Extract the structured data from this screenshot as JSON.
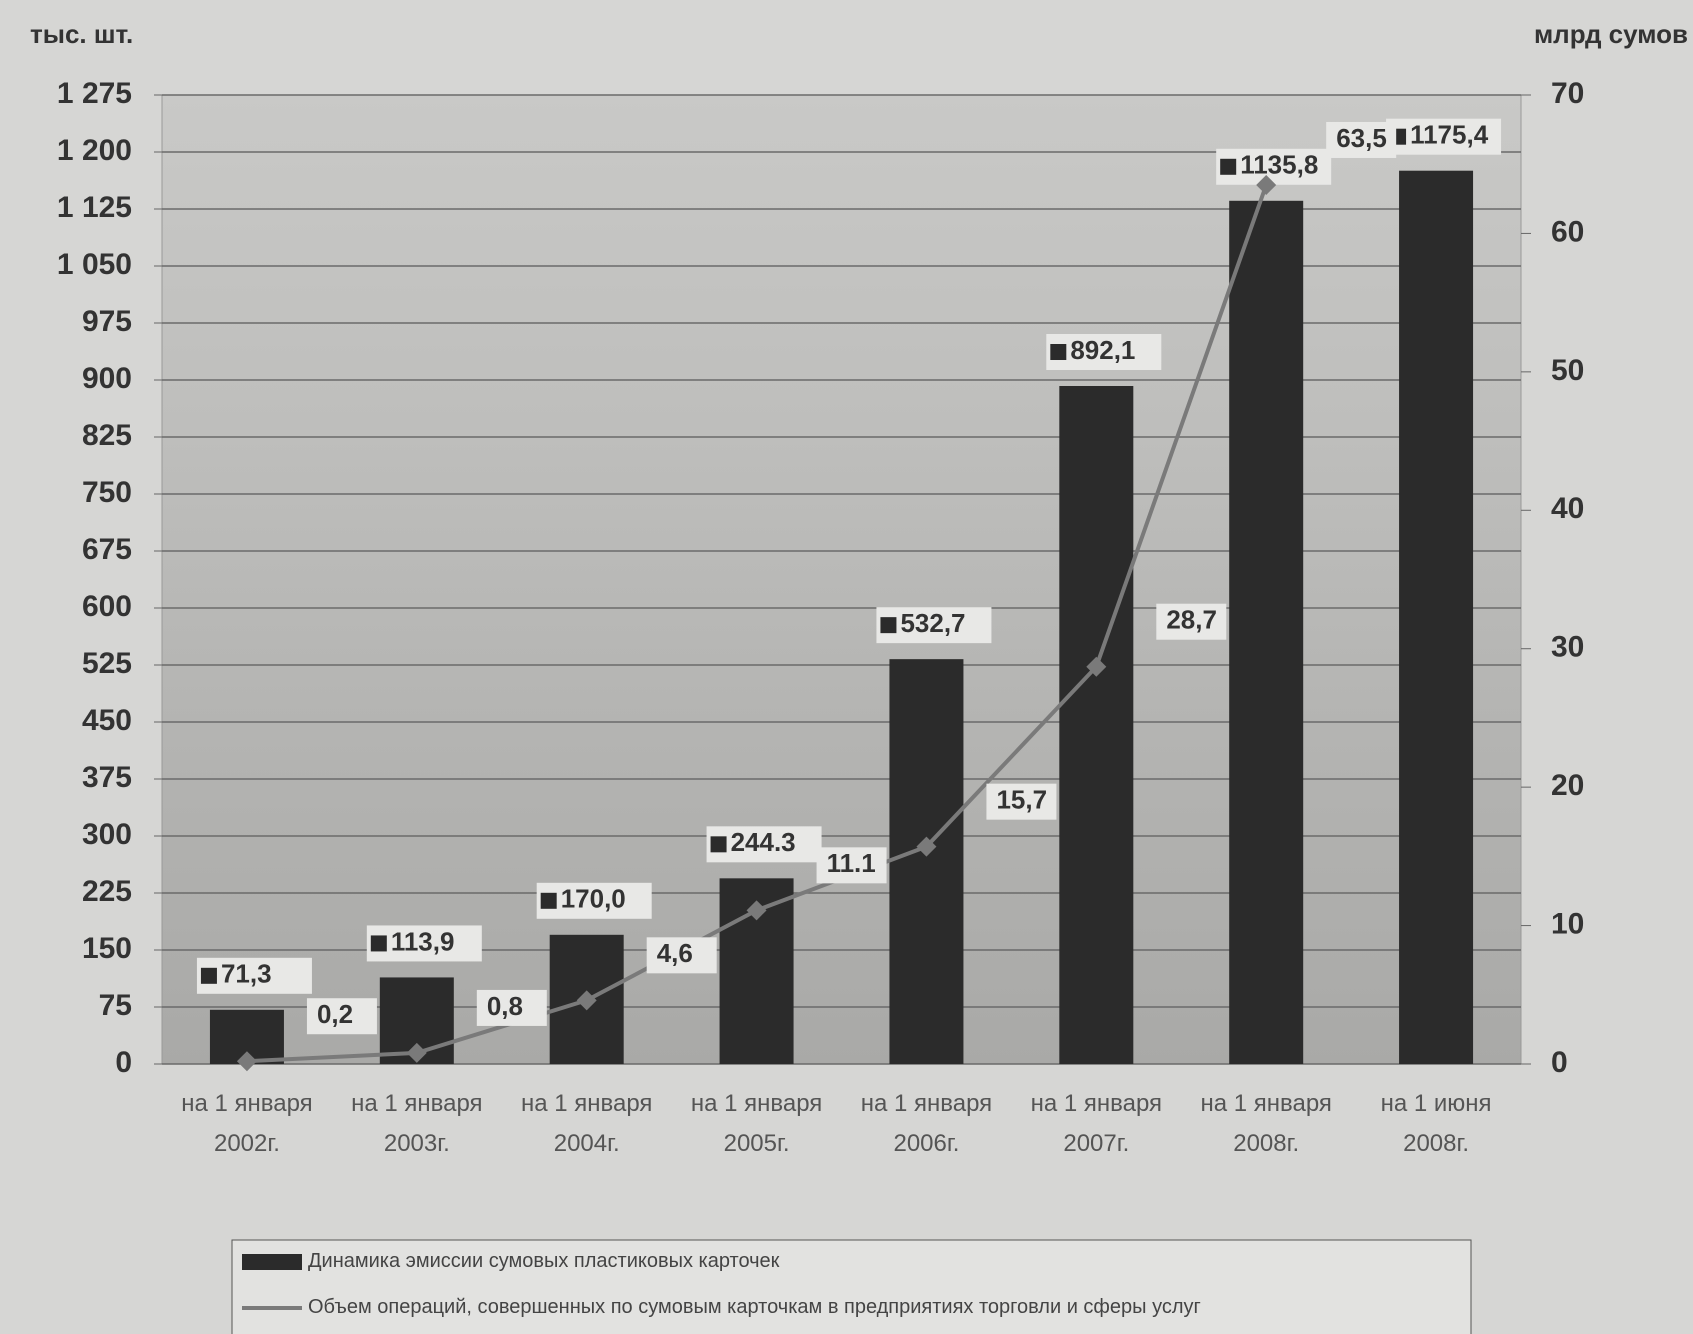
{
  "chart_data": {
    "type": "bar+line",
    "y_label": "тыс. шт.",
    "y2_label": "млрд сумов",
    "categories": [
      "на 1 января 2002г.",
      "на 1 января 2003г.",
      "на 1 января 2004г.",
      "на 1 января 2005г.",
      "на 1 января 2006г.",
      "на 1 января 2007г.",
      "на 1 января 2008г.",
      "на 1 июня 2008г."
    ],
    "series": [
      {
        "name": "Динамика эмиссии сумовых пластиковых карточек",
        "type": "bar",
        "color": "#2b2b2b",
        "values": [
          71.3,
          113.9,
          170.0,
          244.3,
          532.7,
          892.1,
          1135.8,
          1175.4
        ],
        "value_labels": [
          "71,3",
          "113,9",
          "170,0",
          "244.3",
          "532,7",
          "892,1",
          "1135,8",
          "1175,4"
        ]
      },
      {
        "name": "Объем операций, совершенных по сумовым карточкам в предприятиях торговли и сферы услуг",
        "type": "line",
        "axis": "y2",
        "color": "#7a7a7a",
        "values": [
          0.2,
          0.8,
          4.6,
          11.1,
          15.7,
          28.7,
          63.5,
          null
        ],
        "value_labels": [
          "0,2",
          "0,8",
          "4,6",
          "11.1",
          "15,7",
          "28,7",
          "63,5",
          null
        ]
      }
    ],
    "ylim": [
      0,
      1275
    ],
    "yticks": [
      0,
      75,
      150,
      225,
      300,
      375,
      450,
      525,
      600,
      675,
      750,
      825,
      900,
      975,
      {
        "value": 1050,
        "label": "1 050"
      },
      {
        "value": 1125,
        "label": "1 125"
      },
      {
        "value": 1200,
        "label": "1 200"
      },
      {
        "value": 1275,
        "label": "1 275"
      }
    ],
    "y2lim": [
      0,
      70
    ],
    "y2ticks": [
      0,
      10,
      20,
      30,
      40,
      50,
      60,
      70
    ],
    "grid": true,
    "legend": "bottom"
  }
}
